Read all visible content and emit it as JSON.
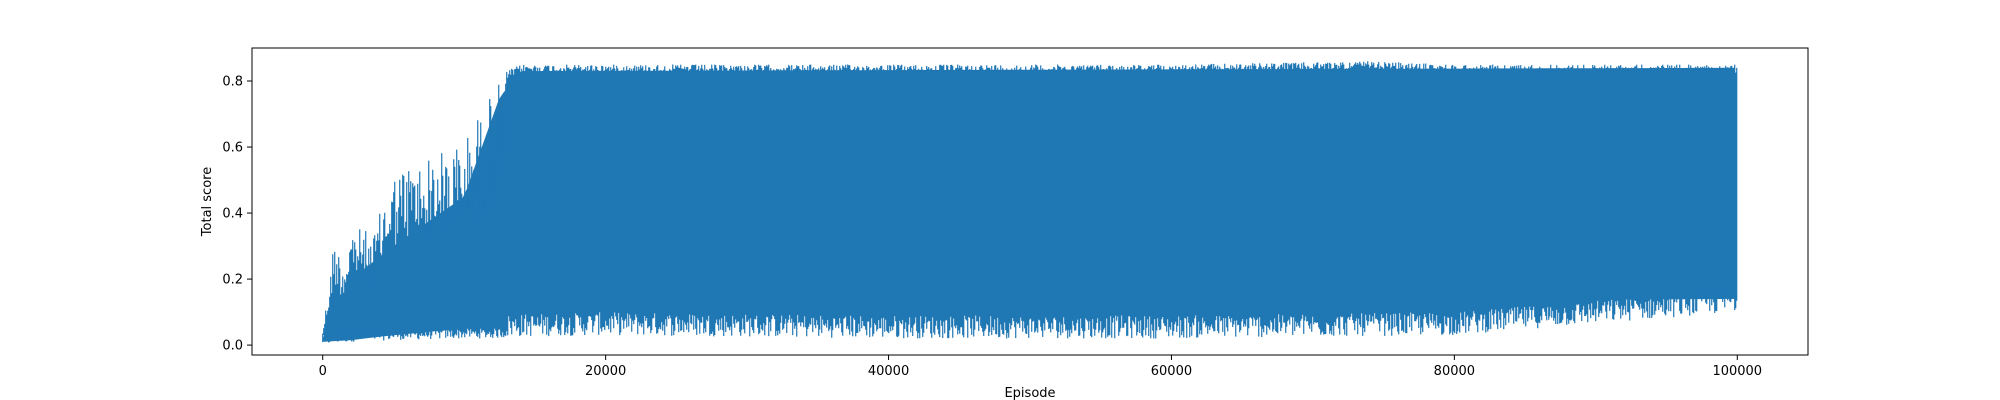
{
  "chart_data": {
    "type": "line",
    "title": "",
    "xlabel": "Episode",
    "ylabel": "Total score",
    "xlim": [
      -5000,
      105000
    ],
    "ylim": [
      -0.03,
      0.9
    ],
    "x_ticks": [
      0,
      20000,
      40000,
      60000,
      80000,
      100000
    ],
    "x_tick_labels": [
      "0",
      "20000",
      "40000",
      "60000",
      "80000",
      "100000"
    ],
    "y_ticks": [
      0.0,
      0.2,
      0.4,
      0.6,
      0.8
    ],
    "y_tick_labels": [
      "0.0",
      "0.2",
      "0.4",
      "0.6",
      "0.8"
    ],
    "grid": false,
    "legend": "none",
    "series": [
      {
        "color": "#1f77b4",
        "x_start": 0,
        "x_end": 100000,
        "upper_envelope": {
          "x": [
            0,
            500,
            800,
            1000,
            1500,
            2000,
            3000,
            3500,
            4500,
            5000,
            6000,
            7000,
            8000,
            9000,
            10000,
            11000,
            11500,
            12000,
            12500,
            13000,
            14000,
            20000,
            40000,
            60000,
            74000,
            80000,
            100000
          ],
          "y": [
            0.05,
            0.2,
            0.33,
            0.3,
            0.25,
            0.36,
            0.35,
            0.32,
            0.47,
            0.52,
            0.55,
            0.56,
            0.58,
            0.6,
            0.62,
            0.7,
            0.72,
            0.78,
            0.8,
            0.83,
            0.85,
            0.85,
            0.85,
            0.85,
            0.86,
            0.85,
            0.85
          ]
        },
        "lower_envelope": {
          "x": [
            0,
            2000,
            5000,
            10000,
            12000,
            14000,
            20000,
            40000,
            60000,
            80000,
            100000
          ],
          "y": [
            0.0,
            0.01,
            0.015,
            0.02,
            0.02,
            0.025,
            0.03,
            0.02,
            0.02,
            0.03,
            0.1
          ]
        },
        "dense_band": {
          "x": [
            0,
            2000,
            5000,
            10000,
            12500,
            14000,
            100000
          ],
          "upper": [
            0.02,
            0.2,
            0.3,
            0.45,
            0.75,
            0.83,
            0.84
          ],
          "lower": [
            0.01,
            0.015,
            0.03,
            0.05,
            0.08,
            0.12,
            0.14
          ]
        }
      }
    ]
  }
}
